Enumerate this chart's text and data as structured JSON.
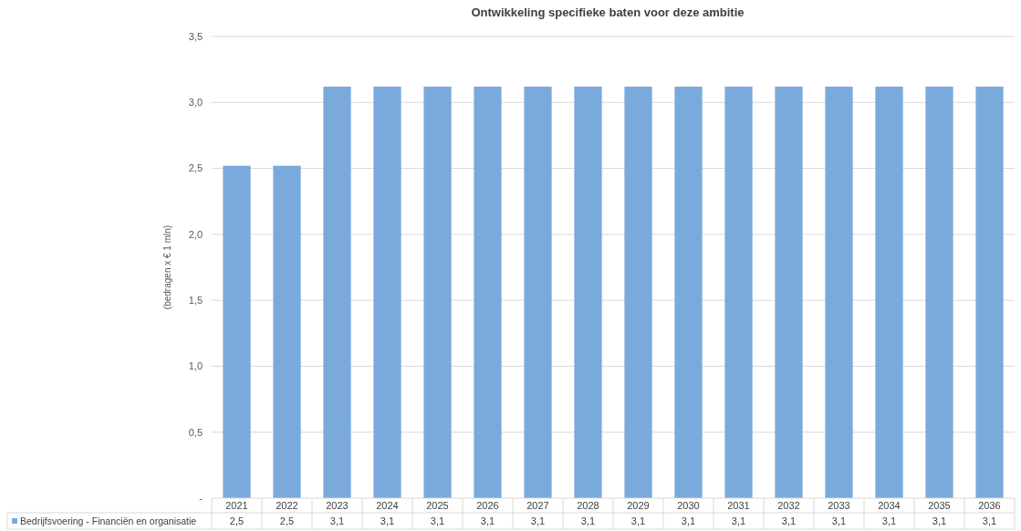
{
  "chart_data": {
    "type": "bar",
    "title": "Ontwikkeling specifieke baten voor deze ambitie",
    "ylabel": "(bedragen x € 1 mln)",
    "categories": [
      "2021",
      "2022",
      "2023",
      "2024",
      "2025",
      "2026",
      "2027",
      "2028",
      "2029",
      "2030",
      "2031",
      "2032",
      "2033",
      "2034",
      "2035",
      "2036"
    ],
    "series": [
      {
        "name": "Bedrijfsvoering - Financiën en organisatie",
        "color": "#7aaadc",
        "values": [
          2.52,
          2.52,
          3.12,
          3.12,
          3.12,
          3.12,
          3.12,
          3.12,
          3.12,
          3.12,
          3.12,
          3.12,
          3.12,
          3.12,
          3.12,
          3.12
        ],
        "value_labels": [
          "2,5",
          "2,5",
          "3,1",
          "3,1",
          "3,1",
          "3,1",
          "3,1",
          "3,1",
          "3,1",
          "3,1",
          "3,1",
          "3,1",
          "3,1",
          "3,1",
          "3,1",
          "3,1"
        ]
      }
    ],
    "ylim": [
      0,
      3.5
    ],
    "yticks": [
      {
        "value": 0,
        "label": "-"
      },
      {
        "value": 0.5,
        "label": "0,5"
      },
      {
        "value": 1,
        "label": "1,0"
      },
      {
        "value": 1.5,
        "label": "1,5"
      },
      {
        "value": 2,
        "label": "2,0"
      },
      {
        "value": 2.5,
        "label": "2,5"
      },
      {
        "value": 3,
        "label": "3,0"
      },
      {
        "value": 3.5,
        "label": "3,5"
      }
    ],
    "grid": "y",
    "legend": "bottom"
  }
}
